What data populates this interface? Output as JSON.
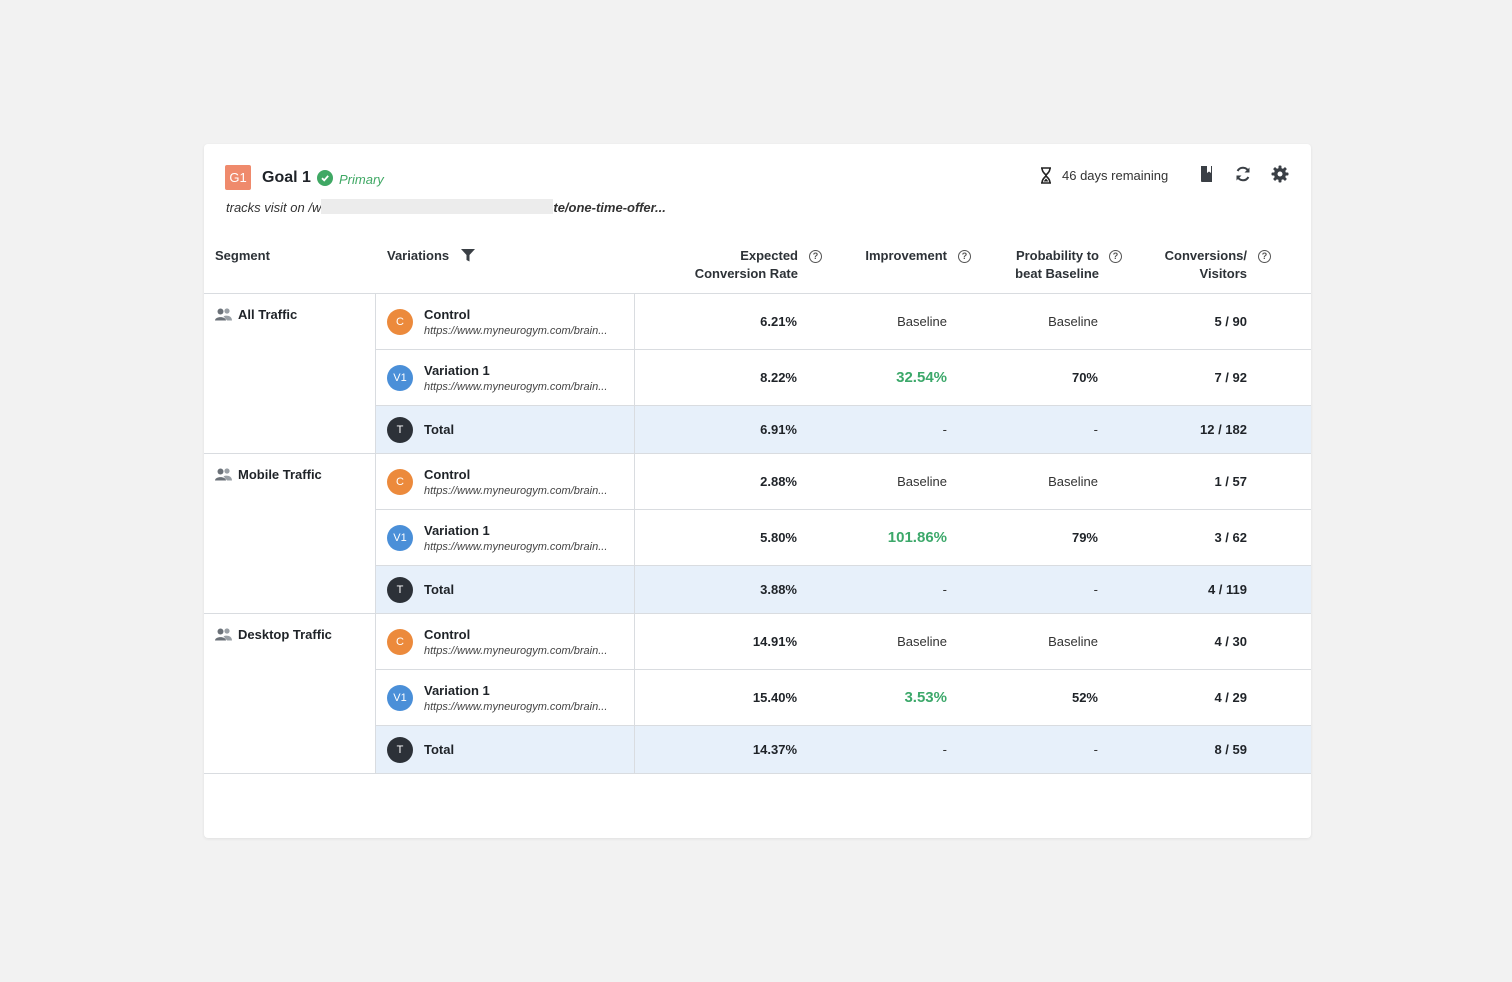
{
  "goal": {
    "badge": "G1",
    "title": "Goal 1",
    "primary_label": "Primary",
    "tracks_prefix": "tracks visit on /w",
    "tracks_suffix": "te/one-time-offer..."
  },
  "toolbar": {
    "days_remaining": "46 days remaining",
    "icons": [
      "hourglass-icon",
      "book-icon",
      "refresh-icon",
      "gear-icon"
    ]
  },
  "columns": {
    "segment": "Segment",
    "variations": "Variations",
    "expected_1": "Expected",
    "expected_2": "Conversion Rate",
    "improvement": "Improvement",
    "probability_1": "Probability to",
    "probability_2": "beat Baseline",
    "conversions_1": "Conversions/",
    "conversions_2": "Visitors"
  },
  "segments": [
    {
      "name": "All Traffic",
      "rows": [
        {
          "avatar": "C",
          "name": "Control",
          "url": "https://www.myneurogym.com/brain...",
          "rate": "6.21%",
          "improvement": "Baseline",
          "probability": "Baseline",
          "conversions": "5 / 90"
        },
        {
          "avatar": "V1",
          "name": "Variation 1",
          "url": "https://www.myneurogym.com/brain...",
          "rate": "8.22%",
          "improvement": "32.54%",
          "probability": "70%",
          "conversions": "7 / 92"
        },
        {
          "avatar": "T",
          "name": "Total",
          "rate": "6.91%",
          "improvement": "-",
          "probability": "-",
          "conversions": "12 / 182"
        }
      ]
    },
    {
      "name": "Mobile Traffic",
      "rows": [
        {
          "avatar": "C",
          "name": "Control",
          "url": "https://www.myneurogym.com/brain...",
          "rate": "2.88%",
          "improvement": "Baseline",
          "probability": "Baseline",
          "conversions": "1 / 57"
        },
        {
          "avatar": "V1",
          "name": "Variation 1",
          "url": "https://www.myneurogym.com/brain...",
          "rate": "5.80%",
          "improvement": "101.86%",
          "probability": "79%",
          "conversions": "3 / 62"
        },
        {
          "avatar": "T",
          "name": "Total",
          "rate": "3.88%",
          "improvement": "-",
          "probability": "-",
          "conversions": "4 / 119"
        }
      ]
    },
    {
      "name": "Desktop Traffic",
      "rows": [
        {
          "avatar": "C",
          "name": "Control",
          "url": "https://www.myneurogym.com/brain...",
          "rate": "14.91%",
          "improvement": "Baseline",
          "probability": "Baseline",
          "conversions": "4 / 30"
        },
        {
          "avatar": "V1",
          "name": "Variation 1",
          "url": "https://www.myneurogym.com/brain...",
          "rate": "15.40%",
          "improvement": "3.53%",
          "probability": "52%",
          "conversions": "4 / 29"
        },
        {
          "avatar": "T",
          "name": "Total",
          "rate": "14.37%",
          "improvement": "-",
          "probability": "-",
          "conversions": "8 / 59"
        }
      ]
    }
  ],
  "colors": {
    "positive": "#3ca86a",
    "total_row": "#e7f0fa",
    "control_avatar": "#ec8a3c",
    "variation_avatar": "#4a8fd8",
    "total_avatar": "#2c3138",
    "goal_badge": "#ef8a6c"
  }
}
